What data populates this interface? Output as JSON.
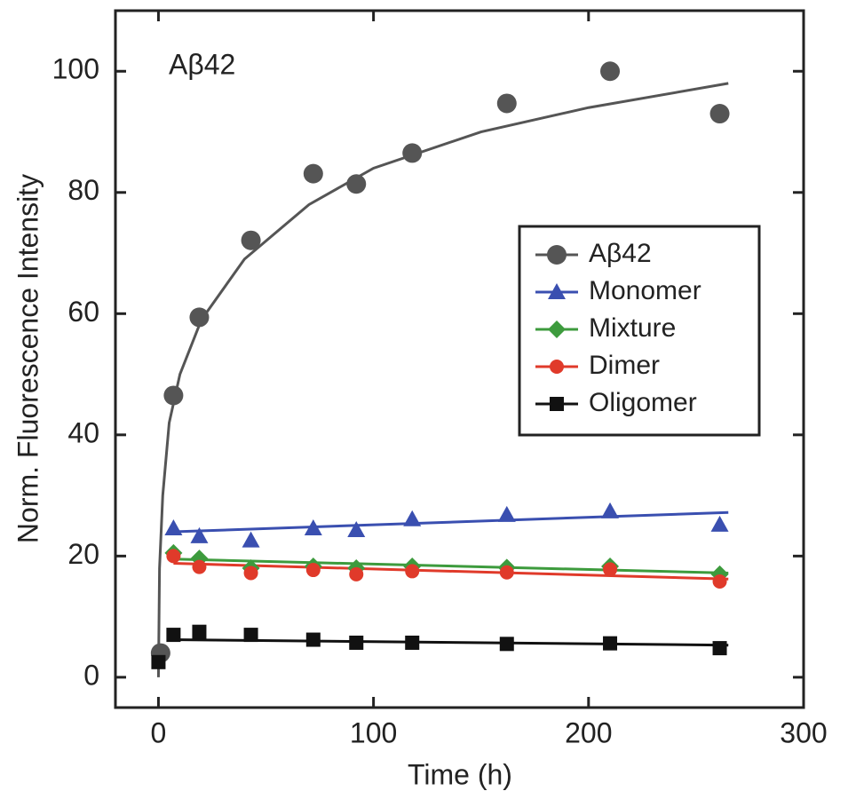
{
  "chart_data": {
    "type": "scatter",
    "annotation": "Aβ42",
    "xlabel": "Time (h)",
    "ylabel": "Norm. Fluorescence Intensity",
    "xlim": [
      -20,
      300
    ],
    "xticks": [
      0,
      100,
      200,
      300
    ],
    "ylim": [
      -5,
      110
    ],
    "yticks": [
      0,
      20,
      40,
      60,
      80,
      100
    ],
    "legend": "right",
    "series": [
      {
        "name": "Aβ42",
        "color": "#555555",
        "marker": "circle",
        "x": [
          1,
          7,
          19,
          43,
          72,
          92,
          118,
          162,
          210,
          261
        ],
        "values": [
          4,
          46.5,
          59.4,
          72.1,
          83.1,
          81.4,
          86.5,
          94.7,
          100,
          93
        ],
        "fit": {
          "x": [
            0,
            0.5,
            2,
            5,
            10,
            20,
            40,
            70,
            100,
            150,
            200,
            265
          ],
          "values": [
            0,
            18,
            30,
            42,
            50,
            59,
            69,
            78,
            84,
            90,
            94,
            98
          ]
        }
      },
      {
        "name": "Monomer",
        "color": "#3a4fb0",
        "marker": "triangle",
        "x": [
          7,
          19,
          43,
          72,
          92,
          118,
          162,
          210,
          261
        ],
        "values": [
          24.6,
          23.3,
          22.6,
          24.6,
          24.3,
          26.1,
          26.8,
          27.4,
          25.2
        ],
        "fit": {
          "x": [
            7,
            265
          ],
          "values": [
            24,
            27.2
          ]
        }
      },
      {
        "name": "Mixture",
        "color": "#3d9b3d",
        "marker": "diamond",
        "x": [
          7,
          19,
          43,
          72,
          92,
          118,
          162,
          210,
          261
        ],
        "values": [
          20.5,
          19.6,
          18,
          18.3,
          18,
          18.3,
          18.1,
          18.3,
          17
        ],
        "fit": {
          "x": [
            7,
            265
          ],
          "values": [
            19.5,
            17.2
          ]
        }
      },
      {
        "name": "Dimer",
        "color": "#e03a2a",
        "marker": "dot",
        "x": [
          7,
          19,
          43,
          72,
          92,
          118,
          162,
          210,
          261
        ],
        "values": [
          20,
          18.2,
          17.2,
          17.7,
          17,
          17.5,
          17.3,
          17.8,
          15.8
        ],
        "fit": {
          "x": [
            7,
            265
          ],
          "values": [
            18.8,
            16.2
          ]
        }
      },
      {
        "name": "Oligomer",
        "color": "#111111",
        "marker": "square",
        "x": [
          0,
          7,
          19,
          43,
          72,
          92,
          118,
          162,
          210,
          261
        ],
        "values": [
          2.5,
          7,
          7.5,
          7,
          6.2,
          5.7,
          5.7,
          5.5,
          5.6,
          4.8
        ],
        "fit": {
          "x": [
            5,
            265
          ],
          "values": [
            6.2,
            5.3
          ]
        }
      }
    ]
  }
}
